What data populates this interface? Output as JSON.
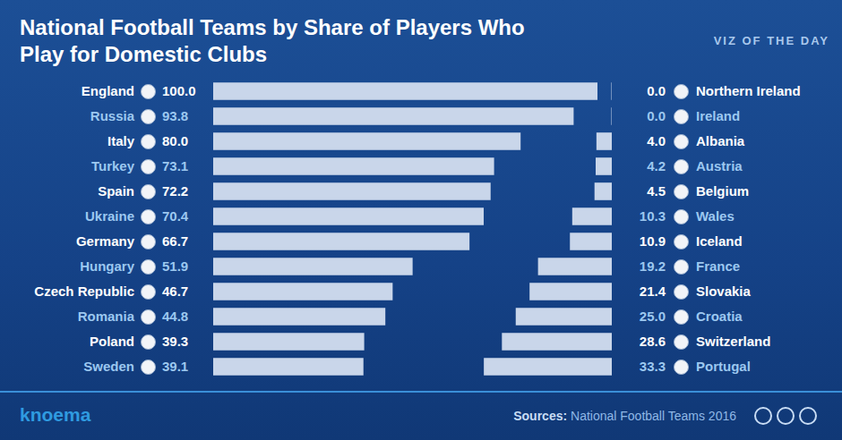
{
  "title": "National Football Teams by Share of Players Who Play for Domestic Clubs",
  "badge": "VIZ OF THE DAY",
  "brand": "knoema",
  "source_label": "Sources:",
  "source": "National Football Teams 2016",
  "chart_data": [
    {
      "type": "bar",
      "orientation": "horizontal",
      "categories": [
        "England",
        "Russia",
        "Italy",
        "Turkey",
        "Spain",
        "Ukraine",
        "Germany",
        "Hungary",
        "Czech Republic",
        "Romania",
        "Poland",
        "Sweden"
      ],
      "values": [
        100.0,
        93.8,
        80.0,
        73.1,
        72.2,
        70.4,
        66.7,
        51.9,
        46.7,
        44.8,
        39.3,
        39.1
      ],
      "value_labels": [
        "100.0",
        "93.8",
        "80.0",
        "73.1",
        "72.2",
        "70.4",
        "66.7",
        "51.9",
        "46.7",
        "44.8",
        "39.3",
        "39.1"
      ],
      "color": "#c9d6ea",
      "xlim": [
        0,
        100
      ],
      "grid": false,
      "data_labels": true,
      "tick_labels": false
    },
    {
      "type": "bar",
      "orientation": "horizontal",
      "categories": [
        "Northern Ireland",
        "Ireland",
        "Albania",
        "Austria",
        "Belgium",
        "Wales",
        "Iceland",
        "France",
        "Slovakia",
        "Croatia",
        "Switzerland",
        "Portugal"
      ],
      "values": [
        0.0,
        0.0,
        4.0,
        4.2,
        4.5,
        10.3,
        10.9,
        19.2,
        21.4,
        25.0,
        28.6,
        33.3
      ],
      "value_labels": [
        "0.0",
        "0.0",
        "4.0",
        "4.2",
        "4.5",
        "10.3",
        "10.9",
        "19.2",
        "21.4",
        "25.0",
        "28.6",
        "33.3"
      ],
      "color": "#c9d6ea",
      "xlim": [
        0,
        100
      ],
      "grid": false,
      "data_labels": true,
      "tick_labels": false
    }
  ]
}
